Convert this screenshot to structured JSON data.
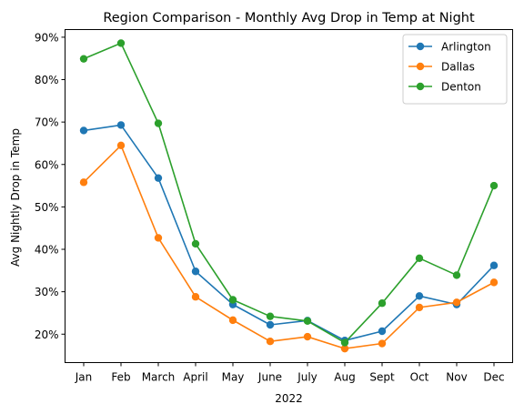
{
  "chart_data": {
    "type": "line",
    "title": "Region Comparison - Monthly Avg Drop in Temp at Night",
    "xlabel": "2022",
    "ylabel": "Avg Nightly Drop in Temp",
    "categories": [
      "Jan",
      "Feb",
      "March",
      "April",
      "May",
      "June",
      "July",
      "Aug",
      "Sept",
      "Oct",
      "Nov",
      "Dec"
    ],
    "ylim": [
      13.3,
      91.8
    ],
    "yticks": [
      20,
      30,
      40,
      50,
      60,
      70,
      80,
      90
    ],
    "ytick_labels": [
      "20%",
      "30%",
      "40%",
      "50%",
      "60%",
      "70%",
      "80%",
      "90%"
    ],
    "grid": false,
    "legend_position": "top-right",
    "series": [
      {
        "name": "Arlington",
        "color": "#1f77b4",
        "values": [
          68.0,
          69.3,
          56.8,
          34.8,
          27.0,
          22.2,
          23.2,
          18.5,
          20.7,
          29.0,
          27.0,
          36.2
        ]
      },
      {
        "name": "Dallas",
        "color": "#ff7f0e",
        "values": [
          55.8,
          64.5,
          42.7,
          28.8,
          23.3,
          18.3,
          19.4,
          16.6,
          17.8,
          26.3,
          27.5,
          32.2
        ]
      },
      {
        "name": "Denton",
        "color": "#2ca02c",
        "values": [
          84.9,
          88.6,
          69.7,
          41.3,
          28.1,
          24.2,
          23.1,
          18.0,
          27.3,
          37.9,
          33.9,
          55.0
        ]
      }
    ]
  }
}
